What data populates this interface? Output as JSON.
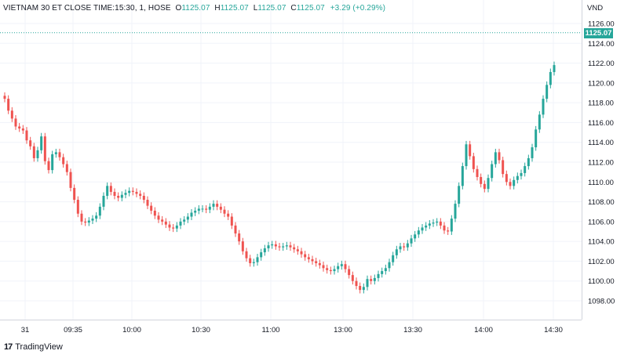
{
  "legend": {
    "symbol": "VIETNAM 30 ET CLOSE TIME:15:30, 1, HOSE",
    "o_label": "O",
    "o_value": "1125.07",
    "h_label": "H",
    "h_value": "1125.07",
    "l_label": "L",
    "l_value": "1125.07",
    "c_label": "C",
    "c_value": "1125.07",
    "change": "+3.29 (+0.29%)"
  },
  "price_axis": {
    "unit": "VND",
    "last_price_tag": "1125.07"
  },
  "branding": {
    "name": "TradingView"
  },
  "colors": {
    "up": "#26a69a",
    "down": "#ef5350",
    "grid": "#f0f3fa",
    "text": "#131722"
  },
  "chart_data": {
    "type": "candlestick",
    "interval": "1 minute",
    "x_tick_labels": [
      "31",
      "09:35",
      "10:00",
      "10:30",
      "11:00",
      "13:00",
      "13:30",
      "14:00",
      "14:30"
    ],
    "y_tick_labels": [
      "1098.00",
      "1100.00",
      "1102.00",
      "1104.00",
      "1106.00",
      "1108.00",
      "1110.00",
      "1112.00",
      "1114.00",
      "1116.00",
      "1118.00",
      "1120.00",
      "1122.00",
      "1124.00",
      "1126.00"
    ],
    "ylim": [
      1097,
      1127
    ],
    "last_price_line": 1125.07,
    "grid": true,
    "close_series": [
      1118.4,
      1117.2,
      1116.4,
      1115.6,
      1115.4,
      1115.2,
      1114.2,
      1113.6,
      1112.4,
      1113.2,
      1114.6,
      1112.1,
      1111.2,
      1112.8,
      1113.0,
      1112.5,
      1111.8,
      1111.0,
      1109.4,
      1108.2,
      1106.8,
      1106.0,
      1105.9,
      1106.1,
      1106.3,
      1106.6,
      1107.5,
      1108.6,
      1109.6,
      1109.0,
      1108.6,
      1108.4,
      1108.7,
      1108.9,
      1109.1,
      1109.0,
      1108.8,
      1108.6,
      1108.2,
      1107.6,
      1107.1,
      1106.6,
      1106.2,
      1106.0,
      1105.7,
      1105.4,
      1105.3,
      1105.6,
      1106.0,
      1106.2,
      1106.5,
      1106.9,
      1107.1,
      1107.3,
      1107.3,
      1107.2,
      1107.5,
      1107.8,
      1107.5,
      1107.2,
      1106.8,
      1106.5,
      1105.6,
      1104.8,
      1104.0,
      1103.0,
      1102.3,
      1101.8,
      1101.9,
      1102.4,
      1102.9,
      1103.3,
      1103.6,
      1103.7,
      1103.5,
      1103.4,
      1103.5,
      1103.6,
      1103.4,
      1103.2,
      1103.0,
      1102.7,
      1102.4,
      1102.2,
      1102.0,
      1101.8,
      1101.6,
      1101.3,
      1101.1,
      1101.0,
      1101.2,
      1101.5,
      1101.7,
      1101.2,
      1100.6,
      1100.0,
      1099.5,
      1099.1,
      1099.4,
      1100.2,
      1100.0,
      1100.3,
      1100.7,
      1101.0,
      1101.3,
      1101.9,
      1102.6,
      1103.2,
      1103.5,
      1103.4,
      1103.8,
      1104.3,
      1104.7,
      1105.1,
      1105.4,
      1105.6,
      1105.8,
      1105.9,
      1106.0,
      1105.6,
      1105.1,
      1105.0,
      1106.3,
      1107.8,
      1109.6,
      1111.6,
      1113.8,
      1112.6,
      1111.3,
      1110.5,
      1109.8,
      1109.3,
      1110.4,
      1111.8,
      1113.0,
      1112.2,
      1110.8,
      1110.0,
      1109.6,
      1110.2,
      1110.6,
      1110.9,
      1111.6,
      1112.4,
      1113.5,
      1115.3,
      1116.8,
      1118.4,
      1119.8,
      1121.1,
      1121.8
    ]
  }
}
